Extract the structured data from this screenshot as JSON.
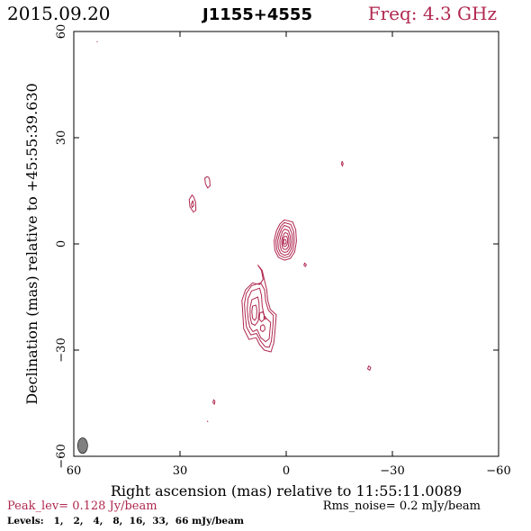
{
  "header": {
    "date": "2015.09.20",
    "source": "J1155+4555",
    "freq": "Freq: 4.3 GHz"
  },
  "footer": {
    "peak": "Peak_lev=  0.128 Jy/beam",
    "rms": "Rms_noise=  0.2 mJy/beam",
    "levels": "Levels:   1,   2,   4,   8,  16,  33,  66 mJy/beam"
  },
  "colors": {
    "contour": "#b0284f",
    "frame": "#000000",
    "beam": "#808080",
    "freq_text": "#b0284f"
  },
  "chart_data": {
    "type": "contour",
    "xlabel": "Right ascension (mas) relative to 11:55:11.0089",
    "ylabel": "Declination (mas) relative to +45:55:39.630",
    "xlim": [
      60,
      -60
    ],
    "ylim": [
      -60,
      60
    ],
    "xticks": [
      60,
      30,
      0,
      -30,
      -60
    ],
    "yticks": [
      -60,
      -30,
      0,
      30,
      60
    ],
    "xtick_labels": [
      "60",
      "30",
      "0",
      "−30",
      "−60"
    ],
    "ytick_labels": [
      "−60",
      "−30",
      "0",
      "30",
      "60"
    ],
    "peak_jy_per_beam": 0.128,
    "rms_mjy_per_beam": 0.2,
    "levels_mjy_per_beam": [
      1,
      2,
      4,
      8,
      16,
      33,
      66
    ],
    "beam": {
      "x": 57.5,
      "y": -57,
      "major": 2.2,
      "minor": 1.4,
      "pa": 0
    },
    "components": [
      {
        "name": "core",
        "levels": [
          [
            [
              0.5,
              6.8
            ],
            [
              -1.8,
              6.2
            ],
            [
              -2.7,
              4
            ],
            [
              -2.9,
              0.8
            ],
            [
              -2.4,
              -2.3
            ],
            [
              -1.2,
              -4.1
            ],
            [
              0.5,
              -4.6
            ],
            [
              2.2,
              -3.8
            ],
            [
              3.2,
              -1.8
            ],
            [
              3.4,
              0.9
            ],
            [
              2.8,
              3.6
            ],
            [
              1.8,
              5.6
            ]
          ],
          [
            [
              0.5,
              6
            ],
            [
              -1.3,
              5.5
            ],
            [
              -2.1,
              3.5
            ],
            [
              -2.3,
              0.8
            ],
            [
              -1.9,
              -1.9
            ],
            [
              -0.9,
              -3.5
            ],
            [
              0.5,
              -3.9
            ],
            [
              1.9,
              -3.2
            ],
            [
              2.7,
              -1.5
            ],
            [
              2.9,
              0.9
            ],
            [
              2.3,
              3.2
            ],
            [
              1.5,
              5
            ]
          ],
          [
            [
              0.5,
              5.2
            ],
            [
              -0.9,
              4.7
            ],
            [
              -1.6,
              3
            ],
            [
              -1.8,
              0.8
            ],
            [
              -1.4,
              -1.6
            ],
            [
              -0.6,
              -2.9
            ],
            [
              0.5,
              -3.2
            ],
            [
              1.6,
              -2.6
            ],
            [
              2.2,
              -1.2
            ],
            [
              2.4,
              0.9
            ],
            [
              1.9,
              2.8
            ],
            [
              1.2,
              4.4
            ]
          ],
          [
            [
              0.4,
              4.2
            ],
            [
              -0.6,
              3.8
            ],
            [
              -1.1,
              2.4
            ],
            [
              -1.3,
              0.7
            ],
            [
              -1,
              -1.2
            ],
            [
              -0.3,
              -2.2
            ],
            [
              0.5,
              -2.4
            ],
            [
              1.3,
              -1.9
            ],
            [
              1.7,
              -0.8
            ],
            [
              1.8,
              0.9
            ],
            [
              1.5,
              2.3
            ],
            [
              1,
              3.6
            ]
          ],
          [
            [
              0.3,
              3.2
            ],
            [
              -0.4,
              2.9
            ],
            [
              -0.7,
              1.8
            ],
            [
              -0.8,
              0.6
            ],
            [
              -0.6,
              -0.8
            ],
            [
              -0.1,
              -1.5
            ],
            [
              0.5,
              -1.6
            ],
            [
              1,
              -1.2
            ],
            [
              1.2,
              -0.4
            ],
            [
              1.3,
              0.9
            ],
            [
              1.1,
              1.8
            ],
            [
              0.7,
              2.7
            ]
          ],
          [
            [
              0.3,
              2.2
            ],
            [
              -0.2,
              2
            ],
            [
              -0.4,
              1.2
            ],
            [
              -0.4,
              0.5
            ],
            [
              -0.2,
              -0.3
            ],
            [
              0.2,
              -0.7
            ],
            [
              0.6,
              -0.7
            ],
            [
              0.9,
              -0.3
            ],
            [
              1,
              0.4
            ],
            [
              0.9,
              1.2
            ],
            [
              0.7,
              1.8
            ]
          ],
          [
            [
              0.4,
              1.3
            ],
            [
              0.1,
              1.1
            ],
            [
              0,
              0.6
            ],
            [
              0.1,
              0.1
            ],
            [
              0.4,
              -0.1
            ],
            [
              0.7,
              0.2
            ],
            [
              0.7,
              0.8
            ],
            [
              0.6,
              1.2
            ]
          ]
        ]
      },
      {
        "name": "jet",
        "levels": [
          [
            [
              8,
              -6
            ],
            [
              7,
              -7.5
            ],
            [
              6.5,
              -10
            ],
            [
              7.5,
              -11.5
            ],
            [
              9.5,
              -11
            ],
            [
              11.5,
              -13
            ],
            [
              12.5,
              -16
            ],
            [
              12.3,
              -19
            ],
            [
              12,
              -24
            ],
            [
              10.5,
              -27
            ],
            [
              8.5,
              -26.5
            ],
            [
              7.5,
              -28.5
            ],
            [
              6.2,
              -30
            ],
            [
              4.3,
              -30.5
            ],
            [
              3.5,
              -28
            ],
            [
              3.2,
              -25
            ],
            [
              3,
              -22.5
            ],
            [
              2.8,
              -20
            ],
            [
              4.5,
              -18.5
            ],
            [
              5.2,
              -16
            ],
            [
              5.5,
              -13
            ],
            [
              6.2,
              -10
            ],
            [
              6.8,
              -7.5
            ]
          ],
          [
            [
              7.2,
              -11
            ],
            [
              9.8,
              -11.8
            ],
            [
              11.3,
              -14
            ],
            [
              11.8,
              -17
            ],
            [
              11.6,
              -20
            ],
            [
              11.2,
              -23.5
            ],
            [
              10,
              -25.7
            ],
            [
              8.4,
              -25.3
            ],
            [
              7.2,
              -27.5
            ],
            [
              6,
              -29
            ],
            [
              4.8,
              -29.2
            ],
            [
              4.2,
              -27.5
            ],
            [
              3.9,
              -24.8
            ],
            [
              3.7,
              -22.5
            ],
            [
              3.6,
              -20.2
            ],
            [
              5,
              -18.8
            ],
            [
              5.8,
              -16.2
            ],
            [
              6.1,
              -13
            ]
          ],
          [
            [
              7.5,
              -12.5
            ],
            [
              9.8,
              -13.3
            ],
            [
              10.8,
              -15.5
            ],
            [
              11,
              -18.5
            ],
            [
              10.7,
              -21.5
            ],
            [
              10.3,
              -23.5
            ],
            [
              9.4,
              -24.8
            ],
            [
              8.2,
              -24.2
            ],
            [
              7.2,
              -26.5
            ],
            [
              5.8,
              -27.6
            ],
            [
              4.8,
              -26.8
            ],
            [
              4.6,
              -24.5
            ],
            [
              4.4,
              -22.2
            ],
            [
              6.2,
              -20.5
            ],
            [
              6.8,
              -17.5
            ],
            [
              7,
              -14.5
            ]
          ],
          [
            [
              8,
              -15
            ],
            [
              9.7,
              -15.8
            ],
            [
              10.2,
              -18
            ],
            [
              10.2,
              -20.5
            ],
            [
              9.8,
              -22.5
            ],
            [
              8.8,
              -23
            ],
            [
              7.9,
              -21.8
            ],
            [
              7.6,
              -19
            ],
            [
              7.7,
              -16.5
            ]
          ],
          [
            [
              8.6,
              -17.3
            ],
            [
              9.5,
              -17.6
            ],
            [
              9.7,
              -19.2
            ],
            [
              9.5,
              -21
            ],
            [
              8.9,
              -21.6
            ],
            [
              8.4,
              -20.8
            ],
            [
              8.3,
              -19
            ],
            [
              8.4,
              -17.8
            ]
          ],
          [
            [
              6.7,
              -19.2
            ],
            [
              7.5,
              -19.6
            ],
            [
              7.6,
              -21.2
            ],
            [
              7,
              -22
            ],
            [
              6.3,
              -21.4
            ],
            [
              6.2,
              -20
            ]
          ],
          [
            [
              6.5,
              -22.8
            ],
            [
              7.2,
              -23.2
            ],
            [
              7.3,
              -24.3
            ],
            [
              6.6,
              -24.8
            ],
            [
              6,
              -24.2
            ],
            [
              6.1,
              -23.3
            ]
          ],
          [
            [
              5.9,
              -20.5
            ],
            [
              6.2,
              -20.7
            ],
            [
              6.2,
              -21.2
            ],
            [
              5.8,
              -21.2
            ]
          ]
        ]
      },
      {
        "name": "north-feature",
        "levels": [
          [
            [
              26.6,
              13.8
            ],
            [
              27.4,
              12.5
            ],
            [
              27.2,
              10.5
            ],
            [
              26.2,
              9
            ],
            [
              25.5,
              9.5
            ],
            [
              25.6,
              11.8
            ],
            [
              26.1,
              13.2
            ]
          ],
          [
            [
              26.4,
              12.2
            ],
            [
              26.8,
              11.3
            ],
            [
              26.6,
              10.3
            ],
            [
              26.1,
              10.8
            ]
          ],
          [
            [
              22.4,
              19
            ],
            [
              23,
              18.5
            ],
            [
              22.8,
              17
            ],
            [
              22.2,
              15.8
            ],
            [
              21.5,
              16.4
            ],
            [
              21.6,
              18
            ],
            [
              21.9,
              18.8
            ]
          ]
        ]
      },
      {
        "name": "knot-east",
        "levels": [
          [
            [
              -5.2,
              -5.4
            ],
            [
              -5.7,
              -5.9
            ],
            [
              -5.4,
              -6.4
            ],
            [
              -5,
              -6
            ]
          ]
        ]
      },
      {
        "name": "spot-upper-right",
        "levels": [
          [
            [
              -15.8,
              23.3
            ],
            [
              -16.1,
              22.7
            ],
            [
              -15.9,
              22
            ],
            [
              -15.6,
              22.6
            ]
          ]
        ]
      },
      {
        "name": "spot-lower-right",
        "levels": [
          [
            [
              -23.3,
              -34.5
            ],
            [
              -23.9,
              -34.9
            ],
            [
              -23.6,
              -35.7
            ],
            [
              -23,
              -35.3
            ]
          ]
        ]
      },
      {
        "name": "spot-lower-mid",
        "levels": [
          [
            [
              20.5,
              -44
            ],
            [
              20.1,
              -44.5
            ],
            [
              20.3,
              -45.3
            ],
            [
              20.7,
              -44.8
            ]
          ]
        ]
      },
      {
        "name": "speck-left",
        "levels": [
          [
            [
              22.3,
              -50
            ],
            [
              22.1,
              -50.3
            ]
          ]
        ]
      },
      {
        "name": "speck-top-left",
        "levels": [
          [
            [
              53.5,
              57.2
            ],
            [
              53.3,
              57
            ]
          ]
        ]
      }
    ]
  }
}
